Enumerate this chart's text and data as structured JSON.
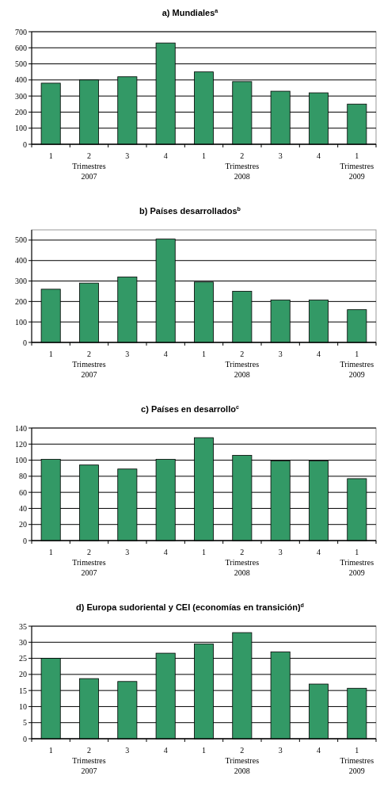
{
  "chart_data": [
    {
      "type": "bar",
      "title": "a) Mundiales$^{a}$",
      "categories": [
        "1",
        "2\nTrimestres\n2007",
        "3",
        "4",
        "1",
        "2\nTrimestres\n2008",
        "3",
        "4",
        "1\nTrimestres\n2009"
      ],
      "values": [
        380,
        400,
        420,
        630,
        450,
        390,
        330,
        320,
        250
      ],
      "color": "#339966",
      "ylim": [
        0,
        700
      ],
      "yticks": [
        0,
        100,
        200,
        300,
        400,
        500,
        600,
        700
      ],
      "grid": "y"
    },
    {
      "type": "bar",
      "title": "b) Países desarrollados$^{b}$",
      "categories": [
        "1",
        "2\nTrimestres\n2007",
        "3",
        "4",
        "1",
        "2\nTrimestres\n2008",
        "3",
        "4",
        "1\nTrimestres\n2009"
      ],
      "values": [
        260,
        290,
        320,
        505,
        295,
        250,
        207,
        207,
        160
      ],
      "color": "#339966",
      "ylim": [
        0,
        550
      ],
      "yticks": [
        0,
        100,
        200,
        300,
        400,
        500
      ],
      "grid": "y"
    },
    {
      "type": "bar",
      "title": "c) Países en desarrollo$^{c}$",
      "categories": [
        "1",
        "2\nTrimestres\n2007",
        "3",
        "4",
        "1",
        "2\nTrimestres\n2008",
        "3",
        "4",
        "1\nTrimestres\n2009"
      ],
      "values": [
        101,
        94,
        89,
        101,
        128,
        106,
        99,
        99,
        77
      ],
      "color": "#339966",
      "ylim": [
        0,
        140
      ],
      "yticks": [
        0,
        20,
        40,
        60,
        80,
        100,
        120,
        140
      ],
      "grid": "y"
    },
    {
      "type": "bar",
      "title": "d) Europa sudoriental y CEI (economías en transición)$^{d}$",
      "categories": [
        "1",
        "2\nTrimestres\n2007",
        "3",
        "4",
        "1",
        "2\nTrimestres\n2008",
        "3",
        "4",
        "1\nTrimestres\n2009"
      ],
      "values": [
        25,
        18.7,
        17.8,
        26.6,
        29.5,
        33,
        27,
        17,
        15.7
      ],
      "color": "#339966",
      "ylim": [
        0,
        35
      ],
      "yticks": [
        0,
        5,
        10,
        15,
        20,
        25,
        30,
        35
      ],
      "grid": "y"
    }
  ]
}
